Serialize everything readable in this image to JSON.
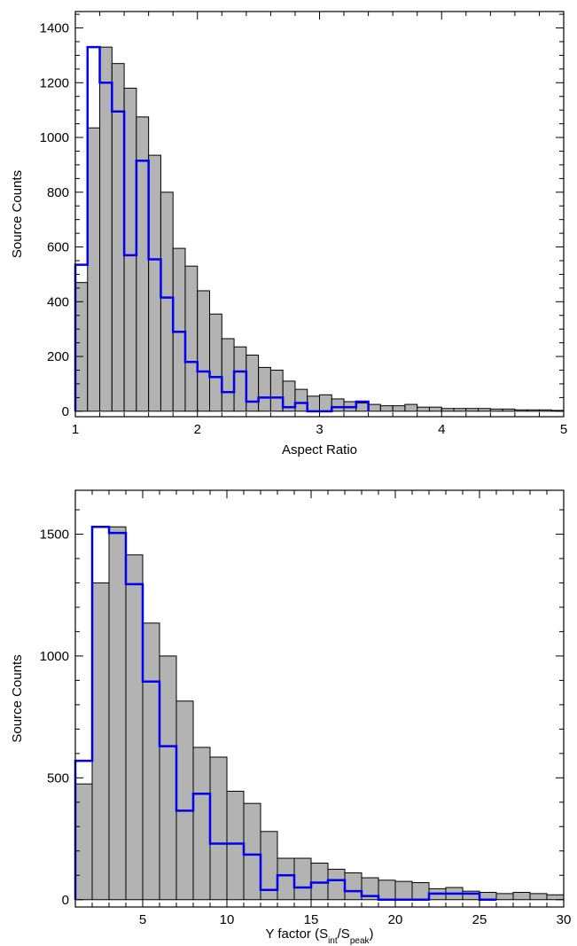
{
  "chart_data": [
    {
      "type": "bar",
      "xlabel": "Aspect Ratio",
      "ylabel": "Source Counts",
      "xlim": [
        1,
        5
      ],
      "ylim": [
        -20,
        1460
      ],
      "bin_width": 0.1,
      "x_ticks": [
        1,
        2,
        3,
        4,
        5
      ],
      "x_tick_labels": [
        "1",
        "2",
        "3",
        "4",
        "5"
      ],
      "y_ticks": [
        0,
        200,
        400,
        600,
        800,
        1000,
        1200,
        1400
      ],
      "y_tick_labels": [
        "0",
        "200",
        "400",
        "600",
        "800",
        "1000",
        "1200",
        "1400"
      ],
      "series": [
        {
          "style": "filled",
          "color": "#b3b3b3",
          "bin_starts": [
            1.0,
            1.1,
            1.2,
            1.3,
            1.4,
            1.5,
            1.6,
            1.7,
            1.8,
            1.9,
            2.0,
            2.1,
            2.2,
            2.3,
            2.4,
            2.5,
            2.6,
            2.7,
            2.8,
            2.9,
            3.0,
            3.1,
            3.2,
            3.3,
            3.4,
            3.5,
            3.6,
            3.7,
            3.8,
            3.9,
            4.0,
            4.1,
            4.2,
            4.3,
            4.4,
            4.5,
            4.6,
            4.7,
            4.8,
            4.9
          ],
          "values": [
            470,
            1035,
            1330,
            1270,
            1180,
            1075,
            935,
            800,
            595,
            530,
            440,
            355,
            265,
            235,
            205,
            160,
            150,
            110,
            80,
            55,
            60,
            45,
            35,
            30,
            25,
            20,
            20,
            25,
            15,
            15,
            10,
            10,
            10,
            10,
            8,
            8,
            5,
            5,
            5,
            3
          ]
        },
        {
          "style": "step",
          "color": "#0000ee",
          "bin_starts": [
            1.0,
            1.1,
            1.2,
            1.3,
            1.4,
            1.5,
            1.6,
            1.7,
            1.8,
            1.9,
            2.0,
            2.1,
            2.2,
            2.3,
            2.4,
            2.5,
            2.6,
            2.7,
            2.8,
            2.9,
            3.0,
            3.1,
            3.2,
            3.3
          ],
          "values": [
            535,
            1330,
            1200,
            1095,
            570,
            915,
            555,
            415,
            290,
            180,
            145,
            125,
            70,
            145,
            35,
            50,
            50,
            15,
            30,
            0,
            0,
            15,
            15,
            35
          ]
        }
      ]
    },
    {
      "type": "bar",
      "xlabel": "Y factor (S",
      "xlabel_sub1": "int",
      "xlabel_mid": "/S",
      "xlabel_sub2": "peak",
      "xlabel_end": ")",
      "ylabel": "Source Counts",
      "xlim": [
        1,
        30
      ],
      "ylim": [
        -30,
        1680
      ],
      "bin_width": 1,
      "x_ticks": [
        5,
        10,
        15,
        20,
        25,
        30
      ],
      "x_tick_labels": [
        "5",
        "10",
        "15",
        "20",
        "25",
        "30"
      ],
      "y_ticks": [
        0,
        500,
        1000,
        1500
      ],
      "y_tick_labels": [
        "0",
        "500",
        "1000",
        "1500"
      ],
      "series": [
        {
          "style": "filled",
          "color": "#b3b3b3",
          "bin_starts": [
            1,
            2,
            3,
            4,
            5,
            6,
            7,
            8,
            9,
            10,
            11,
            12,
            13,
            14,
            15,
            16,
            17,
            18,
            19,
            20,
            21,
            22,
            23,
            24,
            25,
            26,
            27,
            28,
            29
          ],
          "values": [
            475,
            1300,
            1530,
            1415,
            1135,
            1000,
            815,
            625,
            585,
            445,
            395,
            280,
            170,
            170,
            150,
            125,
            110,
            90,
            80,
            75,
            70,
            45,
            50,
            35,
            30,
            25,
            30,
            25,
            20
          ]
        },
        {
          "style": "step",
          "color": "#0000ee",
          "bin_starts": [
            1,
            2,
            3,
            4,
            5,
            6,
            7,
            8,
            9,
            10,
            11,
            12,
            13,
            14,
            15,
            16,
            17,
            18,
            19,
            20,
            21,
            22,
            23,
            24,
            25
          ],
          "values": [
            570,
            1530,
            1505,
            1295,
            895,
            630,
            365,
            435,
            230,
            230,
            185,
            40,
            100,
            50,
            70,
            80,
            35,
            15,
            0,
            0,
            0,
            25,
            25,
            25,
            0
          ]
        }
      ]
    }
  ]
}
